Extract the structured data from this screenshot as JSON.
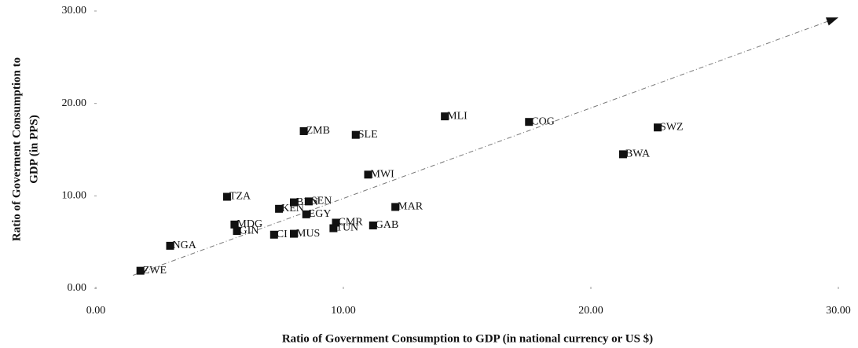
{
  "chart_data": {
    "type": "scatter",
    "xlabel": "Ratio of Government Consumption to GDP (in national currency or US $)",
    "ylabel": [
      "Ratio of Goverment Consumption to",
      "GDP (in PPS)"
    ],
    "labels": [
      "ZWE",
      "NGA",
      "MDG",
      "GIN",
      "TZA",
      "CIV",
      "MUS",
      "KEN",
      "BEN",
      "SEN",
      "EGY",
      "ZMB",
      "SLE",
      "MWI",
      "CMR",
      "TUN",
      "GAB",
      "MAR",
      "MLI",
      "COG",
      "SWZ",
      "BWA"
    ],
    "printed_labels": [
      "ZWE",
      "NGA",
      "MDG",
      "GIN",
      "TZA",
      "CI",
      "MUS",
      "KEN",
      "BEN",
      "SEN",
      "EGY",
      "ZMB",
      "SLE",
      "MWI",
      "CMR",
      "TUN",
      "GAB",
      "MAR",
      "MLI",
      "COG",
      "SWZ",
      "BWA"
    ],
    "x": [
      1.8,
      3.0,
      5.6,
      5.7,
      5.3,
      7.2,
      8.0,
      7.4,
      8.0,
      8.6,
      8.5,
      8.4,
      10.5,
      11.0,
      9.7,
      9.6,
      11.2,
      12.1,
      14.1,
      17.5,
      22.7,
      21.3
    ],
    "values": [
      1.9,
      4.6,
      6.9,
      6.2,
      9.9,
      5.8,
      5.9,
      8.6,
      9.3,
      9.4,
      8.0,
      17.0,
      16.6,
      12.3,
      7.1,
      6.5,
      6.8,
      8.8,
      18.6,
      18.0,
      17.4,
      14.5
    ],
    "color": "#111111",
    "trendline": {
      "x": [
        1.5,
        30
      ],
      "y": [
        1.4,
        29.3
      ],
      "color": "#777777"
    },
    "xlim": [
      0,
      30
    ],
    "ylim": [
      0,
      30
    ],
    "xticks": [
      {
        "value": 0,
        "label": "0.00"
      },
      {
        "value": 10,
        "label": "10.00"
      },
      {
        "value": 20,
        "label": "20.00"
      },
      {
        "value": 30,
        "label": "30.00"
      }
    ],
    "yticks": [
      {
        "value": 0,
        "label": "0.00"
      },
      {
        "value": 10,
        "label": "10.00"
      },
      {
        "value": 20,
        "label": "20.00"
      },
      {
        "value": 30,
        "label": "30.00"
      }
    ]
  }
}
